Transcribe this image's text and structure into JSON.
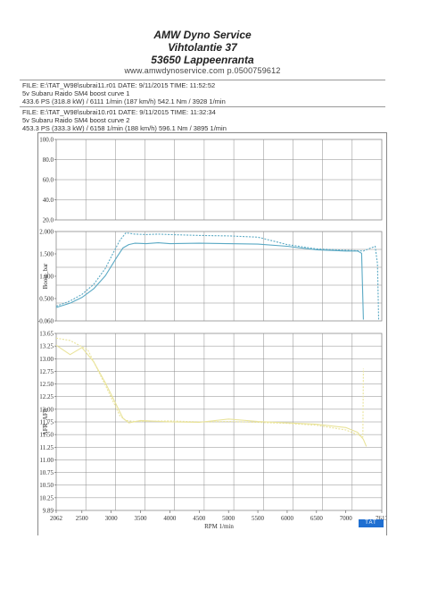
{
  "header": {
    "company": "AMW Dyno Service",
    "street": "Vihtolantie 37",
    "city": "53650 Lappeenranta",
    "web": "www.amwdynoservice.com p.0500759612"
  },
  "runs": [
    {
      "file_line": "FILE: E:\\TAT_W98\\subrai11.r01  DATE: 9/11/2015  TIME: 11:52:52",
      "name_line": "5v Subaru Raido SM4  boost curve 1",
      "power_line": "433.6 PS  (318.8 kW) / 6111 1/min (187 km/h)    542.1 Nm / 3928 1/min"
    },
    {
      "file_line": "FILE: E:\\TAT_W98\\subrai10.r01  DATE: 9/11/2015  TIME: 11:32:34",
      "name_line": "5v Subaru Raido SM4  boost curve 2",
      "power_line": "453.3 PS  (333.3 kW) / 6158 1/min (188 km/h)    596.1 Nm / 3895 1/min"
    }
  ],
  "badge": "TAT",
  "colors": {
    "boost": "#5aa9c4",
    "afr": "#e9e39a",
    "grid": "#8c8c8c"
  },
  "chart_data": [
    {
      "type": "line",
      "ylim": [
        20,
        100
      ],
      "yticks": [
        "100.0",
        "80.0",
        "60.0",
        "40.0",
        "20.0"
      ],
      "series": []
    },
    {
      "type": "line",
      "ylabel": "Boost_bar",
      "ylim": [
        -0.06,
        2.0
      ],
      "yticks": [
        "2.000",
        "1.500",
        "1.000",
        "0.500",
        "-0.060"
      ],
      "series": [
        {
          "style": "solid",
          "x": [
            2062,
            2300,
            2500,
            2700,
            2900,
            3100,
            3200,
            3300,
            3400,
            3600,
            3800,
            4000,
            4500,
            5000,
            5500,
            6000,
            6500,
            7000,
            7200,
            7270,
            7300
          ],
          "y": [
            0.25,
            0.35,
            0.48,
            0.68,
            0.98,
            1.42,
            1.62,
            1.7,
            1.73,
            1.72,
            1.74,
            1.72,
            1.73,
            1.72,
            1.71,
            1.66,
            1.58,
            1.55,
            1.55,
            1.5,
            -0.03
          ]
        },
        {
          "style": "dashed",
          "x": [
            2062,
            2300,
            2500,
            2700,
            2900,
            3050,
            3150,
            3250,
            3400,
            3600,
            3800,
            4000,
            4500,
            5000,
            5500,
            6000,
            6500,
            7000,
            7300,
            7500,
            7540,
            7560
          ],
          "y": [
            0.28,
            0.4,
            0.55,
            0.78,
            1.15,
            1.55,
            1.8,
            1.97,
            1.94,
            1.93,
            1.94,
            1.93,
            1.91,
            1.9,
            1.87,
            1.7,
            1.6,
            1.57,
            1.55,
            1.66,
            1.25,
            -0.03
          ]
        }
      ]
    },
    {
      "type": "line",
      "xlabel": "RPM 1/min",
      "ylabel": "AFR_AFR",
      "xlim": [
        2062,
        7613
      ],
      "xticks": [
        "2062",
        "2500",
        "3000",
        "3500",
        "4000",
        "4500",
        "5000",
        "5500",
        "6000",
        "6500",
        "7000",
        "7613"
      ],
      "ylim": [
        9.89,
        13.65
      ],
      "yticks": [
        "13.65",
        "13.25",
        "13.00",
        "12.75",
        "12.50",
        "12.25",
        "12.00",
        "11.75",
        "11.50",
        "11.25",
        "11.00",
        "10.75",
        "10.50",
        "10.25",
        "9.89"
      ],
      "series": [
        {
          "style": "solid",
          "x": [
            2062,
            2300,
            2500,
            2700,
            2900,
            3100,
            3200,
            3300,
            3500,
            4000,
            4500,
            5000,
            5500,
            6000,
            6500,
            7000,
            7200,
            7300,
            7350
          ],
          "y": [
            13.4,
            13.2,
            13.35,
            13.05,
            12.6,
            12.1,
            11.85,
            11.75,
            11.8,
            11.77,
            11.76,
            11.83,
            11.78,
            11.75,
            11.72,
            11.65,
            11.55,
            11.4,
            11.25
          ]
        },
        {
          "style": "dashed",
          "x": [
            2062,
            2300,
            2600,
            2900,
            3150,
            3250,
            3400,
            4000,
            4500,
            5000,
            5500,
            6000,
            6500,
            7000,
            7200,
            7290,
            7300
          ],
          "y": [
            13.55,
            13.5,
            13.3,
            12.55,
            11.9,
            11.8,
            11.78,
            11.79,
            11.77,
            11.78,
            11.76,
            11.74,
            11.7,
            11.6,
            11.5,
            11.45,
            12.9
          ]
        }
      ]
    }
  ]
}
